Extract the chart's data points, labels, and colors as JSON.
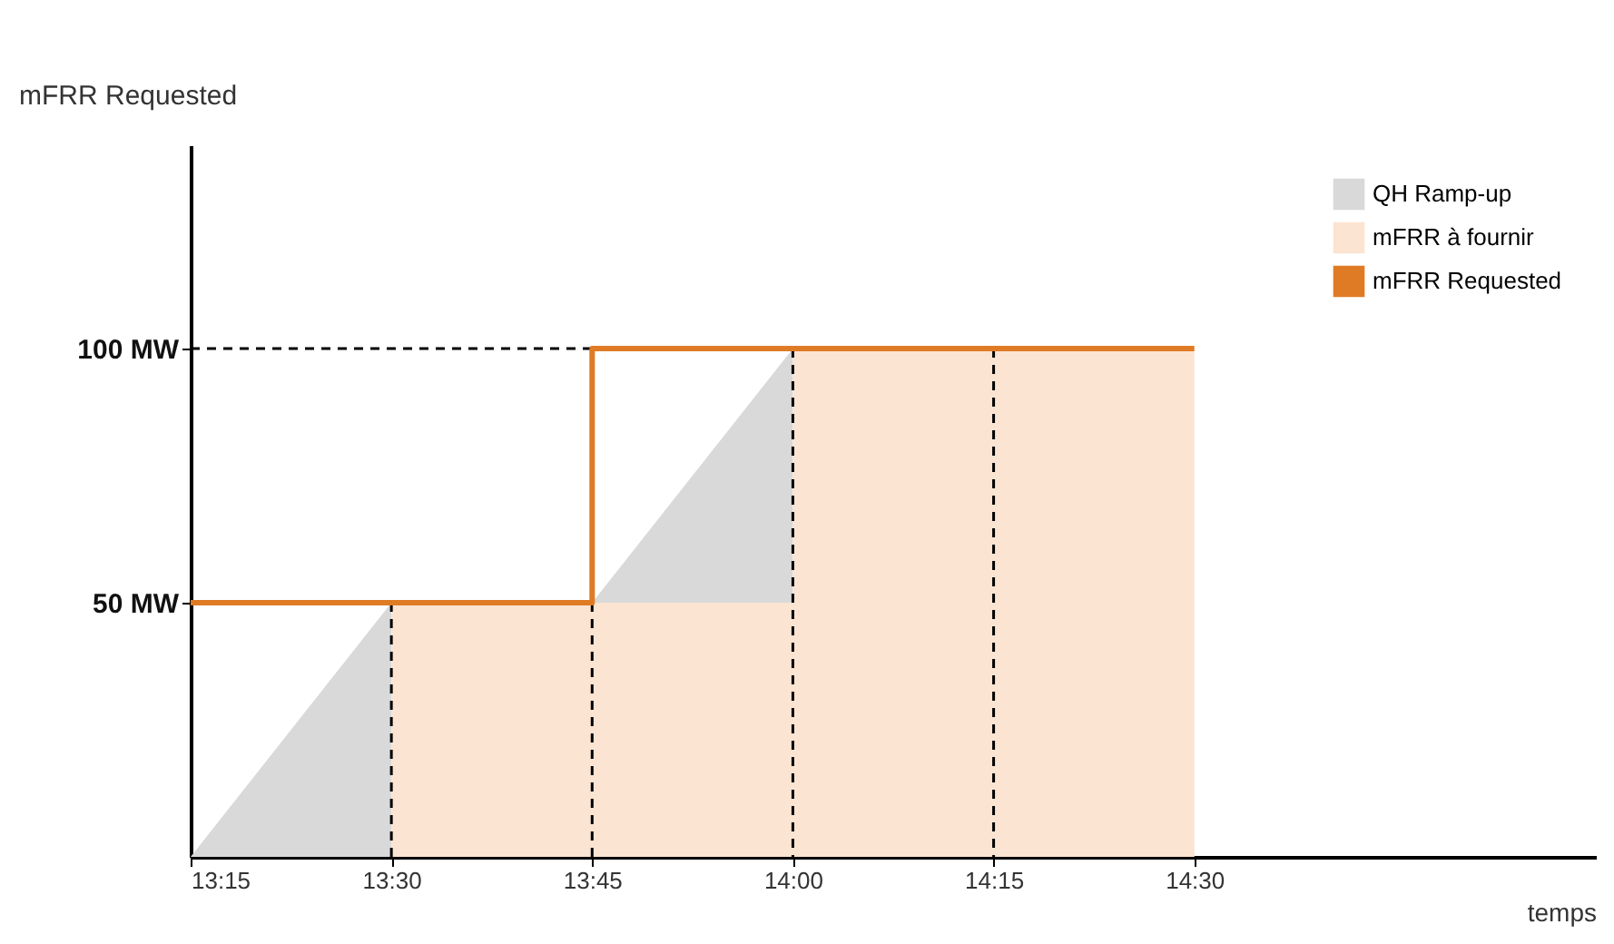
{
  "chart_data": {
    "type": "area",
    "xlabel": "temps",
    "ylabel": "mFRR Requested",
    "xlim": [
      13.25,
      15.0
    ],
    "ylim": [
      0,
      140
    ],
    "xticks": [
      {
        "value": 13.25,
        "label": "13:15"
      },
      {
        "value": 13.5,
        "label": "13:30"
      },
      {
        "value": 13.75,
        "label": "13:45"
      },
      {
        "value": 14.0,
        "label": "14:00"
      },
      {
        "value": 14.25,
        "label": "14:15"
      },
      {
        "value": 14.5,
        "label": "14:30"
      }
    ],
    "yticks": [
      {
        "value": 50,
        "label": "50 MW"
      },
      {
        "value": 100,
        "label": "100 MW"
      }
    ],
    "grid": false,
    "legend": "top right",
    "series": [
      {
        "name": "QH Ramp-up",
        "color": "#d9d9d9",
        "x": [
          13.25,
          13.5
        ],
        "values": [
          0,
          50
        ]
      },
      {
        "color": "#d9d9d9",
        "x": [
          13.75,
          14.0
        ],
        "values": [
          50,
          100
        ]
      },
      {
        "name": "mFRR à fournir",
        "color": "#fce4d2",
        "x": [
          13.5,
          14.0,
          14.0,
          14.5
        ],
        "values": [
          50,
          50,
          100,
          100
        ]
      },
      {
        "type": "line",
        "line_style": "dashed",
        "color": "#000000",
        "x": [
          13.5,
          13.5
        ],
        "values": [
          0,
          50
        ]
      },
      {
        "type": "line",
        "line_style": "dashed",
        "color": "#000000",
        "x": [
          13.75,
          13.75
        ],
        "values": [
          0,
          50
        ]
      },
      {
        "type": "line",
        "line_style": "dashed",
        "color": "#000000",
        "x": [
          14.0,
          14.0
        ],
        "values": [
          100,
          0
        ]
      },
      {
        "type": "line",
        "line_style": "dashed",
        "color": "#000000",
        "x": [
          14.25,
          14.25
        ],
        "values": [
          100,
          0
        ]
      },
      {
        "type": "line",
        "line_style": "dashed",
        "color": "#000000",
        "x": [
          13.25,
          13.75
        ],
        "values": [
          100,
          100
        ]
      },
      {
        "name": "mFRR Requested",
        "type": "step",
        "line_style": "solid",
        "color": "#e07b25",
        "x": [
          13.25,
          13.75,
          14.5
        ],
        "values": [
          50,
          100,
          100
        ]
      }
    ]
  }
}
